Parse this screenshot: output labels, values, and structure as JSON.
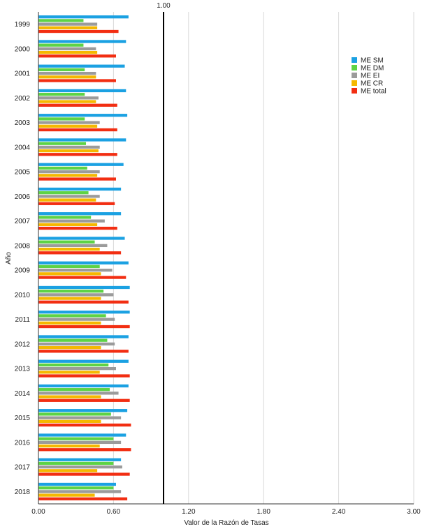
{
  "chart_data": {
    "type": "bar",
    "orientation": "horizontal",
    "title": "",
    "xlabel": "Valor de la Razón de Tasas",
    "ylabel": "Año",
    "xlim": [
      0,
      3.0
    ],
    "xticks": [
      "0.00",
      "0.60",
      "1.20",
      "1.80",
      "2.40",
      "3.00"
    ],
    "xtick_values": [
      0,
      0.6,
      1.2,
      1.8,
      2.4,
      3.0
    ],
    "grid": "vertical",
    "legend_position": "right",
    "reference_line": {
      "value": 1.0,
      "label": "1.00"
    },
    "categories": [
      "1999",
      "2000",
      "2001",
      "2002",
      "2003",
      "2004",
      "2005",
      "2006",
      "2007",
      "2008",
      "2009",
      "2010",
      "2011",
      "2012",
      "2013",
      "2014",
      "2015",
      "2016",
      "2017",
      "2018"
    ],
    "series": [
      {
        "name": "ME SM",
        "color": "#1BA1E2",
        "values": [
          0.72,
          0.7,
          0.69,
          0.7,
          0.71,
          0.7,
          0.68,
          0.66,
          0.66,
          0.69,
          0.72,
          0.73,
          0.73,
          0.72,
          0.72,
          0.72,
          0.71,
          0.7,
          0.66,
          0.62
        ]
      },
      {
        "name": "ME DM",
        "color": "#5DD345",
        "values": [
          0.36,
          0.36,
          0.37,
          0.37,
          0.37,
          0.38,
          0.39,
          0.4,
          0.42,
          0.45,
          0.49,
          0.52,
          0.54,
          0.55,
          0.56,
          0.57,
          0.58,
          0.6,
          0.6,
          0.6
        ]
      },
      {
        "name": "ME EI",
        "color": "#9B9B9B",
        "values": [
          0.47,
          0.46,
          0.46,
          0.48,
          0.49,
          0.49,
          0.49,
          0.49,
          0.53,
          0.55,
          0.59,
          0.6,
          0.61,
          0.61,
          0.62,
          0.64,
          0.66,
          0.66,
          0.67,
          0.66
        ]
      },
      {
        "name": "ME CR",
        "color": "#F5B800",
        "values": [
          0.47,
          0.47,
          0.46,
          0.46,
          0.47,
          0.48,
          0.47,
          0.46,
          0.47,
          0.49,
          0.5,
          0.5,
          0.5,
          0.5,
          0.49,
          0.5,
          0.5,
          0.49,
          0.47,
          0.45
        ]
      },
      {
        "name": "ME total",
        "color": "#F22E12",
        "values": [
          0.64,
          0.62,
          0.62,
          0.63,
          0.63,
          0.63,
          0.62,
          0.61,
          0.63,
          0.66,
          0.7,
          0.72,
          0.73,
          0.72,
          0.73,
          0.73,
          0.74,
          0.74,
          0.73,
          0.71
        ]
      }
    ]
  }
}
